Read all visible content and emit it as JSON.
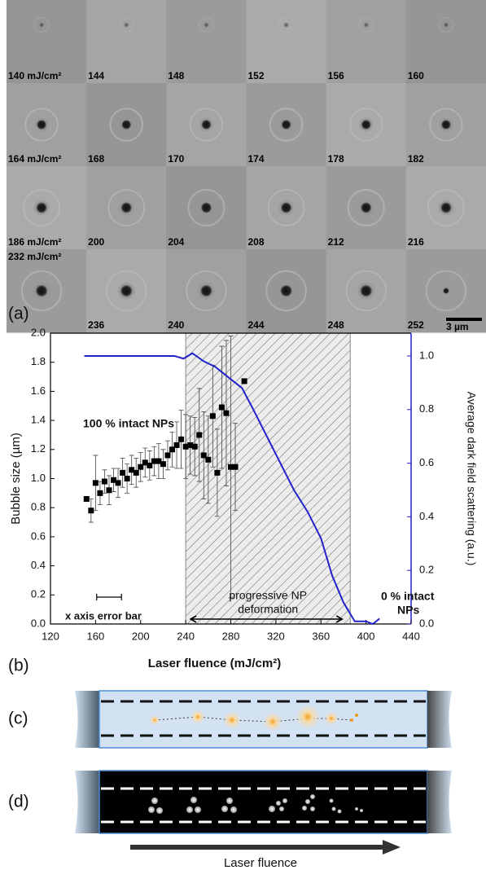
{
  "panel_a": {
    "label": "(a)",
    "scale_bar": "3 µm",
    "frames": [
      [
        "140 mJ/cm²",
        "144",
        "148",
        "152",
        "156",
        "160"
      ],
      [
        "164 mJ/cm²",
        "168",
        "170",
        "174",
        "178",
        "182"
      ],
      [
        "186 mJ/cm²",
        "200",
        "204",
        "208",
        "212",
        "216"
      ],
      [
        "232 mJ/cm²",
        "236",
        "240",
        "244",
        "248",
        "252"
      ]
    ]
  },
  "chart_data": {
    "type": "scatter",
    "label": "(b)",
    "x_label": "Laser fluence (mJ/cm²)",
    "y_label": "Bubble size (µm)",
    "y2_label": "Average dark field scattering (a.u.)",
    "xlim": [
      120,
      440
    ],
    "xticks": [
      120,
      160,
      200,
      240,
      280,
      320,
      360,
      400,
      440
    ],
    "ylim": [
      0,
      2
    ],
    "yticks": [
      {
        "value": 0,
        "label": "0.0"
      },
      {
        "value": 0.2,
        "label": "0.2"
      },
      {
        "value": 0.4,
        "label": "0.4"
      },
      {
        "value": 0.6,
        "label": "0.6"
      },
      {
        "value": 0.8,
        "label": "0.8"
      },
      {
        "value": 1,
        "label": "1.0"
      },
      {
        "value": 1.2,
        "label": "1.2"
      },
      {
        "value": 1.4,
        "label": "1.4"
      },
      {
        "value": 1.6,
        "label": "1.6"
      },
      {
        "value": 1.8,
        "label": "1.8"
      },
      {
        "value": 2,
        "label": "2.0"
      }
    ],
    "y2lim": [
      0,
      1.085
    ],
    "y2ticks": [
      {
        "value": 0,
        "label": "0.0"
      },
      {
        "value": 0.2,
        "label": "0.2"
      },
      {
        "value": 0.4,
        "label": "0.4"
      },
      {
        "value": 0.6,
        "label": "0.6"
      },
      {
        "value": 0.8,
        "label": "0.8"
      },
      {
        "value": 1,
        "label": "1.0"
      }
    ],
    "shaded_region": [
      240,
      386
    ],
    "x_error": 11,
    "annotations": {
      "intact_100": "100 % intact NPs",
      "intact_0": [
        "0 % intact",
        "NPs"
      ],
      "deformation": [
        "progressive NP",
        "deformation"
      ],
      "error_bar": "x axis error bar"
    },
    "series": [
      {
        "type": "scatter",
        "color": "#000000",
        "x": [
          152,
          156,
          160,
          164,
          168,
          172,
          176,
          180,
          184,
          188,
          192,
          196,
          200,
          204,
          208,
          212,
          216,
          220,
          224,
          228,
          232,
          236,
          240,
          244,
          248,
          252,
          256,
          260,
          264,
          268,
          272,
          276,
          280,
          284,
          292
        ],
        "values": [
          0.86,
          0.78,
          0.97,
          0.9,
          0.98,
          0.92,
          0.99,
          0.97,
          1.04,
          1.0,
          1.06,
          1.04,
          1.08,
          1.11,
          1.09,
          1.12,
          1.12,
          1.1,
          1.16,
          1.2,
          1.23,
          1.27,
          1.22,
          1.23,
          1.22,
          1.3,
          1.16,
          1.13,
          1.43,
          1.04,
          1.49,
          1.45,
          1.08,
          1.08,
          1.67
        ],
        "errors": [
          0,
          0.08,
          0.19,
          0.08,
          0.08,
          0.1,
          0.08,
          0.1,
          0.1,
          0.1,
          0.1,
          0.1,
          0.1,
          0.1,
          0.1,
          0.1,
          0.12,
          0.1,
          0.1,
          0.12,
          0.16,
          0.2,
          0.22,
          0.2,
          0.2,
          0.32,
          0.3,
          0.3,
          0.35,
          0.3,
          0.42,
          0.5,
          0.9,
          0.3,
          0
        ]
      },
      {
        "type": "line",
        "color": "#2222cc",
        "axis": "y2",
        "x": [
          150,
          170,
          190,
          210,
          230,
          238,
          246,
          256,
          266,
          278,
          290,
          300,
          312,
          324,
          336,
          348,
          360,
          370,
          380,
          390,
          400,
          406,
          412
        ],
        "values": [
          1.0,
          1.0,
          1.0,
          1.0,
          1.0,
          0.99,
          1.01,
          0.98,
          0.96,
          0.92,
          0.88,
          0.8,
          0.7,
          0.6,
          0.5,
          0.42,
          0.32,
          0.18,
          0.08,
          0.01,
          0.01,
          0.0,
          0.02
        ]
      }
    ]
  },
  "panel_c": {
    "label": "(c)"
  },
  "panel_d": {
    "label": "(d)"
  },
  "fluence_arrow_label": "Laser fluence"
}
